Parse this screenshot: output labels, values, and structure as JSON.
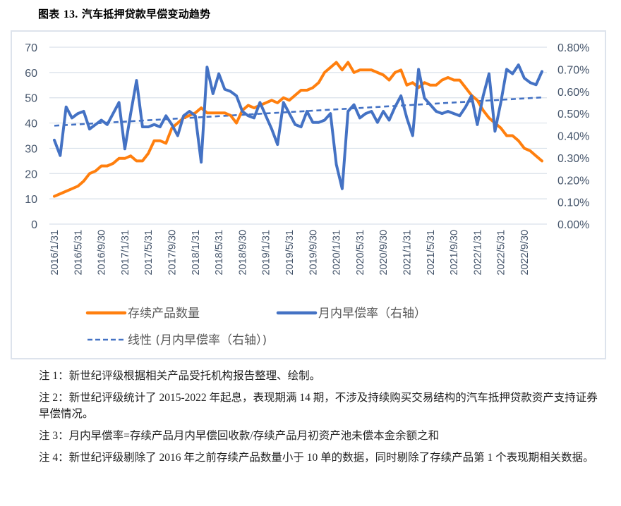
{
  "figure": {
    "label": "图表",
    "number": "13.",
    "title": "汽车抵押贷款早偿变动趋势"
  },
  "legend": {
    "series1": "存续产品数量",
    "series2": "月内早偿率（右轴）",
    "trend": "线性 (月内早偿率（右轴）)"
  },
  "colors": {
    "count": "#ff7f0e",
    "rate": "#4472c4",
    "grid": "#d9e1ea",
    "axis_text": "#44546a"
  },
  "notes": [
    "注 1：新世纪评级根据相关产品受托机构报告整理、绘制。",
    "注 2：新世纪评级统计了 2015-2022 年起息，表现期满 14 期，不涉及持续购买交易结构的汽车抵押贷款资产支持证券早偿情况。",
    "注 3：月内早偿率=存续产品月内早偿回收款/存续产品月初资产池未偿本金余额之和",
    "注 4：新世纪评级剔除了 2016 年之前存续产品数量小于 10 单的数据，同时剔除了存续产品第 1 个表现期相关数据。"
  ],
  "chart_data": {
    "type": "line",
    "title": "汽车抵押贷款早偿变动趋势",
    "xlabel": "",
    "ylabel": "存续产品数量",
    "y2label": "月内早偿率（右轴）",
    "ylim": [
      0,
      70
    ],
    "y_ticks": [
      "0",
      "10",
      "20",
      "30",
      "40",
      "50",
      "60",
      "70"
    ],
    "y2lim": [
      0,
      0.8
    ],
    "y2_ticks": [
      "0.00%",
      "0.10%",
      "0.20%",
      "0.30%",
      "0.40%",
      "0.50%",
      "0.60%",
      "0.70%",
      "0.80%"
    ],
    "grid": true,
    "legend_position": "bottom",
    "x_tick_labels": [
      "2016/1/31",
      "2016/5/31",
      "2016/9/30",
      "2017/1/31",
      "2017/5/31",
      "2017/9/30",
      "2018/1/31",
      "2018/5/31",
      "2018/9/30",
      "2019/1/31",
      "2019/5/31",
      "2019/9/30",
      "2020/1/31",
      "2020/5/31",
      "2020/9/30",
      "2021/1/31",
      "2021/5/31",
      "2021/9/30",
      "2022/1/31",
      "2022/5/31",
      "2022/9/30"
    ],
    "x_tick_every": 4,
    "x_start": "2016/1",
    "x_end": "2022/12",
    "series": [
      {
        "name": "存续产品数量",
        "axis": "left",
        "style": "solid",
        "values": [
          11,
          12,
          13,
          14,
          15,
          17,
          20,
          21,
          23,
          23,
          24,
          26,
          26,
          27,
          25,
          25,
          28,
          33,
          33,
          32,
          38,
          40,
          42,
          43,
          44,
          46,
          44,
          44,
          44,
          44,
          43,
          40,
          45,
          47,
          46,
          47,
          48,
          49,
          48,
          50,
          49,
          51,
          53,
          53,
          54,
          56,
          60,
          62,
          64,
          61,
          64,
          60,
          61,
          61,
          61,
          60,
          59,
          57,
          60,
          61,
          55,
          56,
          54,
          56,
          55,
          55,
          57,
          58,
          57,
          57,
          54,
          51,
          49,
          45,
          42,
          40,
          38,
          35,
          35,
          33,
          30,
          29,
          27,
          25
        ],
        "unit": "单"
      },
      {
        "name": "月内早偿率（右轴）",
        "axis": "right",
        "style": "solid",
        "values": [
          0.38,
          0.31,
          0.53,
          0.48,
          0.5,
          0.51,
          0.43,
          0.45,
          0.47,
          0.45,
          0.5,
          0.55,
          0.34,
          0.5,
          0.65,
          0.44,
          0.44,
          0.45,
          0.44,
          0.49,
          0.45,
          0.4,
          0.49,
          0.51,
          0.49,
          0.28,
          0.71,
          0.59,
          0.68,
          0.61,
          0.6,
          0.58,
          0.51,
          0.49,
          0.48,
          0.55,
          0.49,
          0.43,
          0.36,
          0.55,
          0.5,
          0.45,
          0.44,
          0.51,
          0.46,
          0.46,
          0.47,
          0.5,
          0.27,
          0.16,
          0.51,
          0.54,
          0.48,
          0.5,
          0.51,
          0.46,
          0.51,
          0.47,
          0.53,
          0.58,
          0.48,
          0.4,
          0.7,
          0.57,
          0.54,
          0.51,
          0.5,
          0.51,
          0.5,
          0.49,
          0.53,
          0.58,
          0.45,
          0.58,
          0.68,
          0.42,
          0.55,
          0.7,
          0.68,
          0.72,
          0.66,
          0.64,
          0.63,
          0.69
        ],
        "unit": "%"
      },
      {
        "name": "线性 (月内早偿率（右轴）)",
        "axis": "right",
        "style": "dashed",
        "values_endpoints": [
          0.445,
          0.573
        ]
      }
    ]
  }
}
